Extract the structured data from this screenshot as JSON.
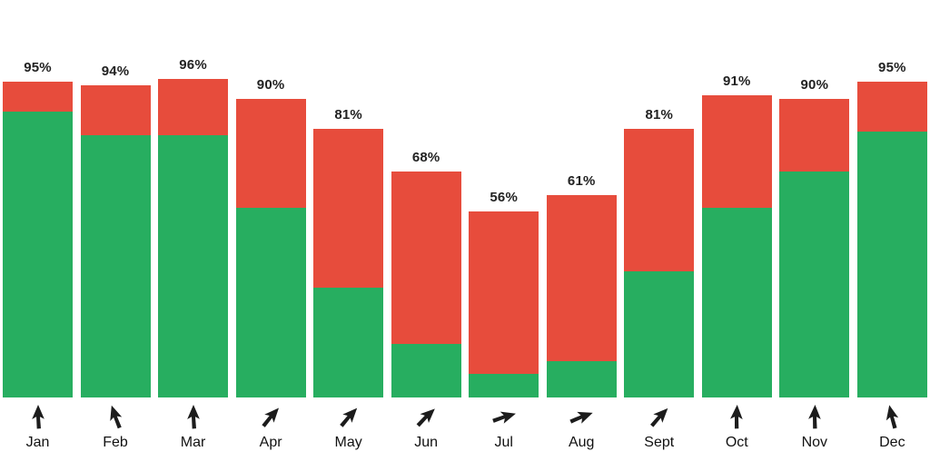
{
  "chart_data": {
    "type": "bar",
    "stacked": true,
    "title": "",
    "xlabel": "",
    "ylabel": "",
    "ylim": [
      0,
      100
    ],
    "grid": false,
    "legend": "none",
    "background": "#ffffff",
    "label_color": "#222222",
    "arrow_color": "#1c1c1c",
    "categories": [
      "Jan",
      "Feb",
      "Mar",
      "Apr",
      "May",
      "Jun",
      "Jul",
      "Aug",
      "Sept",
      "Oct",
      "Nov",
      "Dec"
    ],
    "total_labels": [
      "95%",
      "94%",
      "96%",
      "90%",
      "81%",
      "68%",
      "56%",
      "61%",
      "81%",
      "91%",
      "90%",
      "95%"
    ],
    "totals": [
      95,
      94,
      96,
      90,
      81,
      68,
      56,
      61,
      81,
      91,
      90,
      95
    ],
    "series": [
      {
        "name": "red-top-segment",
        "color": "#e74c3c",
        "values": [
          9,
          15,
          17,
          33,
          48,
          52,
          49,
          50,
          43,
          34,
          22,
          15
        ]
      },
      {
        "name": "green-bottom-segment",
        "color": "#27ae60",
        "values": [
          86,
          79,
          79,
          57,
          33,
          16,
          7,
          11,
          38,
          57,
          68,
          80
        ]
      }
    ],
    "trend_arrow_angles_deg": [
      0,
      -18,
      0,
      42,
      43,
      47,
      74,
      70,
      44,
      3,
      2,
      -12
    ]
  }
}
